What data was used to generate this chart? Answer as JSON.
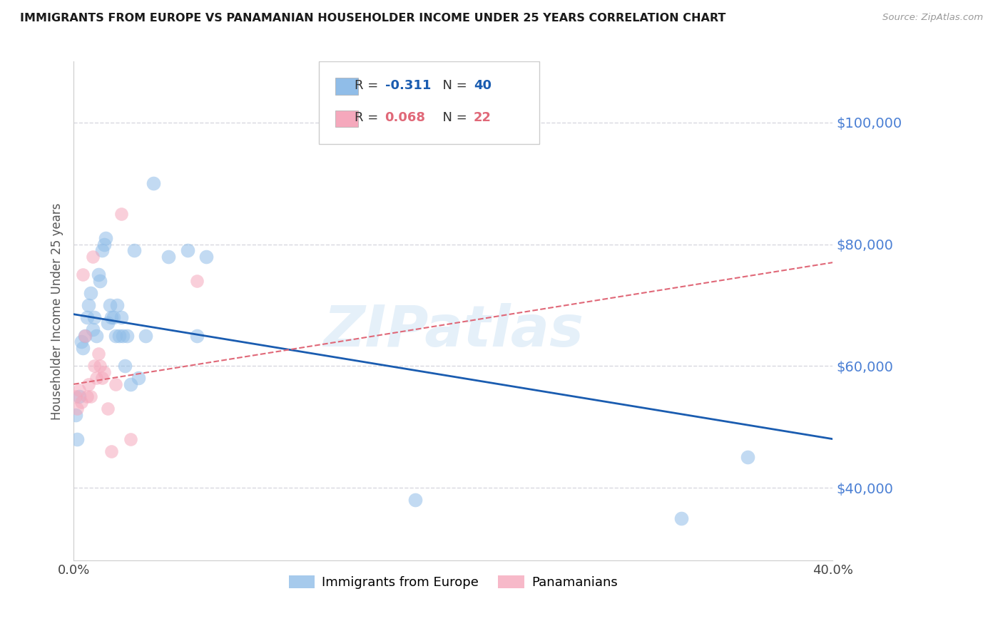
{
  "title": "IMMIGRANTS FROM EUROPE VS PANAMANIAN HOUSEHOLDER INCOME UNDER 25 YEARS CORRELATION CHART",
  "source": "Source: ZipAtlas.com",
  "ylabel": "Householder Income Under 25 years",
  "ytick_values": [
    40000,
    60000,
    80000,
    100000
  ],
  "xlim": [
    0.0,
    0.4
  ],
  "ylim": [
    28000,
    110000
  ],
  "watermark": "ZIPatlas",
  "legend_label1": "Immigrants from Europe",
  "legend_label2": "Panamanians",
  "blue_R": "-0.311",
  "blue_N": "40",
  "pink_R": "0.068",
  "pink_N": "22",
  "blue_scatter_x": [
    0.001,
    0.002,
    0.003,
    0.004,
    0.005,
    0.006,
    0.007,
    0.008,
    0.009,
    0.01,
    0.011,
    0.012,
    0.013,
    0.014,
    0.015,
    0.016,
    0.017,
    0.018,
    0.019,
    0.02,
    0.021,
    0.022,
    0.023,
    0.024,
    0.025,
    0.026,
    0.027,
    0.028,
    0.03,
    0.032,
    0.034,
    0.038,
    0.042,
    0.05,
    0.06,
    0.065,
    0.07,
    0.18,
    0.32,
    0.355
  ],
  "blue_scatter_y": [
    52000,
    48000,
    55000,
    64000,
    63000,
    65000,
    68000,
    70000,
    72000,
    66000,
    68000,
    65000,
    75000,
    74000,
    79000,
    80000,
    81000,
    67000,
    70000,
    68000,
    68000,
    65000,
    70000,
    65000,
    68000,
    65000,
    60000,
    65000,
    57000,
    79000,
    58000,
    65000,
    90000,
    78000,
    79000,
    65000,
    78000,
    38000,
    35000,
    45000
  ],
  "pink_scatter_x": [
    0.001,
    0.002,
    0.003,
    0.004,
    0.005,
    0.006,
    0.007,
    0.008,
    0.009,
    0.01,
    0.011,
    0.012,
    0.013,
    0.014,
    0.015,
    0.016,
    0.018,
    0.02,
    0.022,
    0.025,
    0.03,
    0.065
  ],
  "pink_scatter_y": [
    55000,
    53000,
    56000,
    54000,
    75000,
    65000,
    55000,
    57000,
    55000,
    78000,
    60000,
    58000,
    62000,
    60000,
    58000,
    59000,
    53000,
    46000,
    57000,
    85000,
    48000,
    74000
  ],
  "blue_line_x": [
    0.0,
    0.4
  ],
  "blue_line_y": [
    68500,
    48000
  ],
  "pink_line_x": [
    0.0,
    0.4
  ],
  "pink_line_y": [
    57000,
    77000
  ],
  "scatter_size_blue": 200,
  "scatter_size_pink": 180,
  "scatter_alpha": 0.55,
  "blue_color": "#90bde8",
  "pink_color": "#f5a8bc",
  "blue_line_color": "#1a5cb0",
  "pink_line_color": "#e06878",
  "grid_color": "#d8d8e0",
  "right_axis_color": "#4a7fd4",
  "background_color": "#ffffff",
  "title_color": "#1a1a1a",
  "source_color": "#999999",
  "ylabel_color": "#555555"
}
